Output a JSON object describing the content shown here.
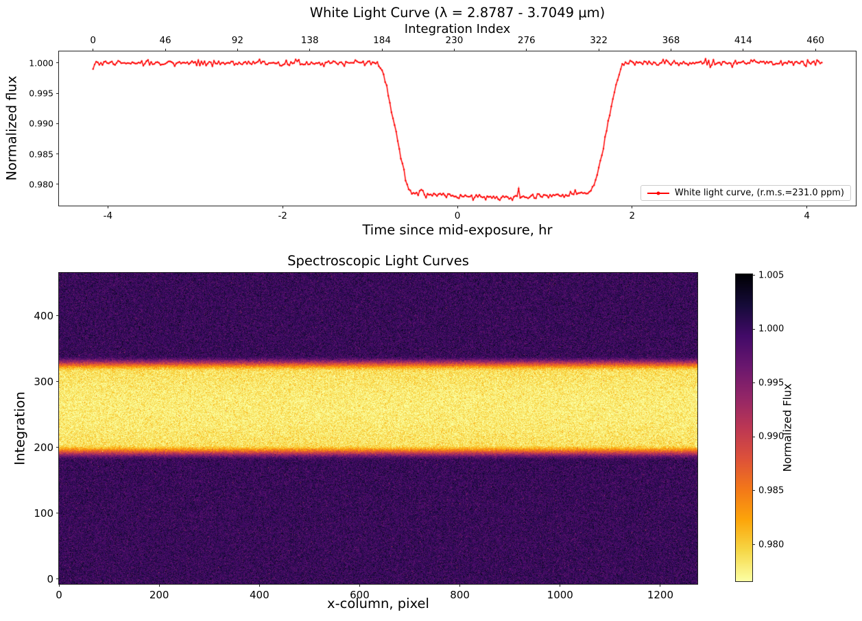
{
  "chart_data": [
    {
      "type": "line",
      "title": "White Light Curve (λ = 2.8787 - 3.7049 μm)",
      "secondary_xlabel": "Integration Index",
      "xlabel": "Time since mid-exposure, hr",
      "ylabel": "Normalized flux",
      "xlim": [
        -4.56,
        4.56
      ],
      "ylim": [
        0.9765,
        1.0019
      ],
      "x_ticks": [
        "-4",
        "-2",
        "0",
        "2",
        "4"
      ],
      "x_tick_values": [
        -4,
        -2,
        0,
        2,
        4
      ],
      "y_ticks": [
        "1.000",
        "0.995",
        "0.990",
        "0.985",
        "0.980"
      ],
      "y_tick_values": [
        1.0,
        0.995,
        0.99,
        0.985,
        0.98
      ],
      "secondary_x_ticks": [
        "0",
        "46",
        "92",
        "138",
        "184",
        "230",
        "276",
        "322",
        "368",
        "414",
        "460"
      ],
      "secondary_x_tick_values": [
        0,
        46,
        92,
        138,
        184,
        230,
        276,
        322,
        368,
        414,
        460
      ],
      "grid": false,
      "legend": {
        "label": "White light curve, (r.m.s.=231.0 ppm)",
        "location": "lower right"
      },
      "series": [
        {
          "name": "White light curve",
          "color": "#ff0000",
          "marker": "point",
          "n_points": 465,
          "time_start_hr": -4.17,
          "time_end_hr": 4.17,
          "baseline_flux": 1.0,
          "floor_edge_flux": 0.9787,
          "floor_mid_flux": 0.9778,
          "transit_depth_ppm": 22200,
          "ingress_start_hr": -0.93,
          "ingress_end_hr": -0.5,
          "egress_start_hr": 1.5,
          "egress_end_hr": 1.93,
          "mid_transit_hr": 0.5,
          "spike": {
            "time_hr": 0.7,
            "flux": 0.9793
          },
          "first_point_flux": 0.999,
          "rms_ppm": 231.0
        }
      ]
    },
    {
      "type": "heatmap",
      "title": "Spectroscopic Light Curves",
      "xlabel": "x-column, pixel",
      "ylabel": "Integration",
      "xlim": [
        0,
        1274
      ],
      "ylim": [
        -7.5,
        465.5
      ],
      "x_ticks": [
        "0",
        "200",
        "400",
        "600",
        "800",
        "1000",
        "1200"
      ],
      "x_tick_values": [
        0,
        200,
        400,
        600,
        800,
        1000,
        1200
      ],
      "y_ticks": [
        "0",
        "100",
        "200",
        "300",
        "400"
      ],
      "y_tick_values": [
        0,
        100,
        200,
        300,
        400
      ],
      "colormap": "inferno_reversed",
      "colorbar": {
        "label": "Normalized Flux",
        "vmin": 0.9766,
        "vmax": 1.0051,
        "ticks": [
          "1.005",
          "1.000",
          "0.995",
          "0.990",
          "0.985",
          "0.980"
        ],
        "tick_values": [
          1.005,
          1.0,
          0.995,
          0.99,
          0.985,
          0.98
        ]
      },
      "n_integrations": 465,
      "n_columns": 1274,
      "out_of_transit_flux": 1.0,
      "in_transit_flux": 0.978,
      "transit_band_integrations": [
        180,
        339
      ],
      "transit_flat_integrations": [
        204,
        315
      ],
      "pixel_noise_sigma": 0.0016
    }
  ]
}
